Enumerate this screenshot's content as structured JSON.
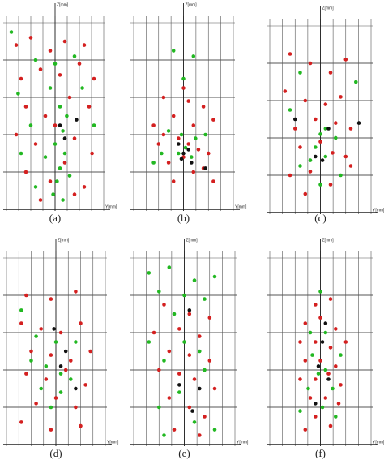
{
  "chart_data": [
    {
      "type": "scatter",
      "label": "(a)",
      "x_label": "Y[mm]",
      "y_label": "Z[mm]",
      "xlim": [
        0,
        100
      ],
      "ylim": [
        0,
        100
      ],
      "grid": true,
      "series": [
        {
          "color": "#d42020",
          "x": [
            10,
            25,
            45,
            60,
            80,
            15,
            35,
            55,
            75,
            90,
            20,
            40,
            65,
            85,
            10,
            30,
            50,
            70,
            88,
            20,
            45,
            60,
            80,
            35,
            70
          ],
          "y": [
            88,
            92,
            85,
            90,
            88,
            70,
            75,
            72,
            78,
            70,
            55,
            50,
            60,
            55,
            40,
            35,
            45,
            38,
            30,
            20,
            15,
            25,
            12,
            5,
            8
          ]
        },
        {
          "color": "#22b822",
          "x": [
            5,
            30,
            50,
            70,
            12,
            45,
            55,
            62,
            58,
            50,
            60,
            55,
            52,
            65,
            25,
            40,
            15,
            90,
            78,
            48,
            58,
            30
          ],
          "y": [
            95,
            80,
            78,
            82,
            62,
            65,
            55,
            50,
            42,
            35,
            30,
            22,
            15,
            18,
            45,
            28,
            30,
            45,
            65,
            8,
            5,
            12
          ]
        },
        {
          "color": "#111111",
          "x": [
            72,
            60,
            55
          ],
          "y": [
            48,
            38,
            45
          ]
        }
      ]
    },
    {
      "type": "scatter",
      "label": "(b)",
      "x_label": "Y[mm]",
      "y_label": "Z[mm]",
      "xlim": [
        0,
        100
      ],
      "ylim": [
        0,
        100
      ],
      "grid": true,
      "series": [
        {
          "color": "#d42020",
          "x": [
            30,
            50,
            70,
            20,
            40,
            60,
            80,
            25,
            45,
            55,
            65,
            75,
            35,
            50,
            60,
            70,
            40,
            80,
            30,
            55
          ],
          "y": [
            60,
            65,
            55,
            45,
            50,
            45,
            48,
            35,
            38,
            35,
            32,
            30,
            25,
            28,
            20,
            22,
            15,
            15,
            40,
            58
          ]
        },
        {
          "color": "#22b822",
          "x": [
            40,
            60,
            50,
            35,
            48,
            52,
            62,
            45,
            58,
            28,
            72,
            20
          ],
          "y": [
            85,
            82,
            70,
            42,
            40,
            33,
            38,
            30,
            28,
            30,
            40,
            25
          ]
        },
        {
          "color": "#111111",
          "x": [
            45,
            50,
            55,
            58,
            72,
            48
          ],
          "y": [
            35,
            30,
            32,
            25,
            22,
            27
          ]
        }
      ]
    },
    {
      "type": "scatter",
      "label": "(c)",
      "x_label": "Y[mm]",
      "y_label": "Z[mm]",
      "xlim": [
        0,
        100
      ],
      "ylim": [
        0,
        100
      ],
      "grid": true,
      "series": [
        {
          "color": "#d42020",
          "x": [
            20,
            40,
            60,
            75,
            15,
            35,
            55,
            70,
            25,
            45,
            65,
            80,
            30,
            50,
            62,
            75,
            20,
            40,
            60,
            80,
            35
          ],
          "y": [
            85,
            80,
            75,
            82,
            65,
            60,
            58,
            62,
            45,
            50,
            48,
            45,
            35,
            38,
            32,
            30,
            20,
            22,
            15,
            25,
            10
          ]
        },
        {
          "color": "#22b822",
          "x": [
            30,
            85,
            20,
            50,
            55,
            45,
            55,
            40,
            65,
            30,
            50,
            70
          ],
          "y": [
            75,
            70,
            55,
            42,
            45,
            35,
            30,
            28,
            40,
            25,
            15,
            20
          ]
        },
        {
          "color": "#111111",
          "x": [
            25,
            45,
            88,
            58,
            52
          ],
          "y": [
            50,
            30,
            48,
            45,
            28
          ]
        }
      ]
    },
    {
      "type": "scatter",
      "label": "(d)",
      "x_label": "Y[mm]",
      "y_label": "Z[mm]",
      "xlim": [
        0,
        100
      ],
      "ylim": [
        0,
        100
      ],
      "grid": true,
      "series": [
        {
          "color": "#d42020",
          "x": [
            20,
            45,
            70,
            15,
            35,
            55,
            75,
            25,
            45,
            65,
            85,
            20,
            40,
            60,
            80,
            30,
            50,
            70,
            15,
            45,
            75
          ],
          "y": [
            80,
            78,
            82,
            65,
            62,
            60,
            65,
            50,
            48,
            45,
            50,
            38,
            35,
            40,
            32,
            22,
            25,
            20,
            12,
            8,
            10
          ]
        },
        {
          "color": "#22b822",
          "x": [
            15,
            30,
            50,
            40,
            55,
            65,
            35,
            55,
            45,
            25,
            70
          ],
          "y": [
            72,
            58,
            55,
            42,
            38,
            35,
            30,
            28,
            20,
            45,
            55
          ]
        },
        {
          "color": "#111111",
          "x": [
            48,
            60,
            55,
            70
          ],
          "y": [
            62,
            50,
            42,
            30
          ]
        }
      ]
    },
    {
      "type": "scatter",
      "label": "(e)",
      "x_label": "Y[mm]",
      "y_label": "Z[mm]",
      "xlim": [
        0,
        100
      ],
      "ylim": [
        0,
        100
      ],
      "grid": true,
      "series": [
        {
          "color": "#d42020",
          "x": [
            30,
            55,
            75,
            20,
            45,
            65,
            35,
            55,
            75,
            25,
            45,
            60,
            80,
            35,
            55,
            70,
            40,
            65
          ],
          "y": [
            75,
            70,
            68,
            60,
            62,
            58,
            50,
            48,
            45,
            40,
            38,
            35,
            30,
            25,
            20,
            15,
            8,
            5
          ]
        },
        {
          "color": "#22b822",
          "x": [
            15,
            35,
            60,
            80,
            25,
            50,
            70,
            40,
            15,
            50,
            65,
            30,
            70,
            45,
            25,
            60,
            80,
            30
          ],
          "y": [
            92,
            95,
            88,
            90,
            82,
            80,
            78,
            70,
            55,
            55,
            50,
            45,
            40,
            28,
            20,
            12,
            8,
            5
          ]
        },
        {
          "color": "#111111",
          "x": [
            55,
            45,
            65,
            58
          ],
          "y": [
            72,
            32,
            30,
            18
          ]
        }
      ]
    },
    {
      "type": "scatter",
      "label": "(f)",
      "x_label": "Y[mm]",
      "y_label": "Z[mm]",
      "xlim": [
        0,
        100
      ],
      "ylim": [
        0,
        100
      ],
      "grid": true,
      "series": [
        {
          "color": "#d42020",
          "x": [
            45,
            60,
            35,
            50,
            65,
            30,
            45,
            60,
            75,
            35,
            50,
            65,
            30,
            45,
            58,
            70,
            40,
            55,
            68,
            45,
            60,
            35
          ],
          "y": [
            75,
            78,
            65,
            68,
            62,
            55,
            55,
            52,
            55,
            45,
            45,
            42,
            35,
            35,
            38,
            32,
            25,
            25,
            22,
            15,
            10,
            8
          ]
        },
        {
          "color": "#22b822",
          "x": [
            50,
            40,
            55,
            70,
            42,
            55,
            48,
            38,
            62,
            52,
            30,
            65
          ],
          "y": [
            82,
            60,
            60,
            48,
            48,
            40,
            38,
            30,
            30,
            20,
            18,
            15
          ]
        },
        {
          "color": "#111111",
          "x": [
            55,
            52,
            48,
            58,
            45
          ],
          "y": [
            65,
            55,
            42,
            35,
            22
          ]
        }
      ]
    }
  ]
}
